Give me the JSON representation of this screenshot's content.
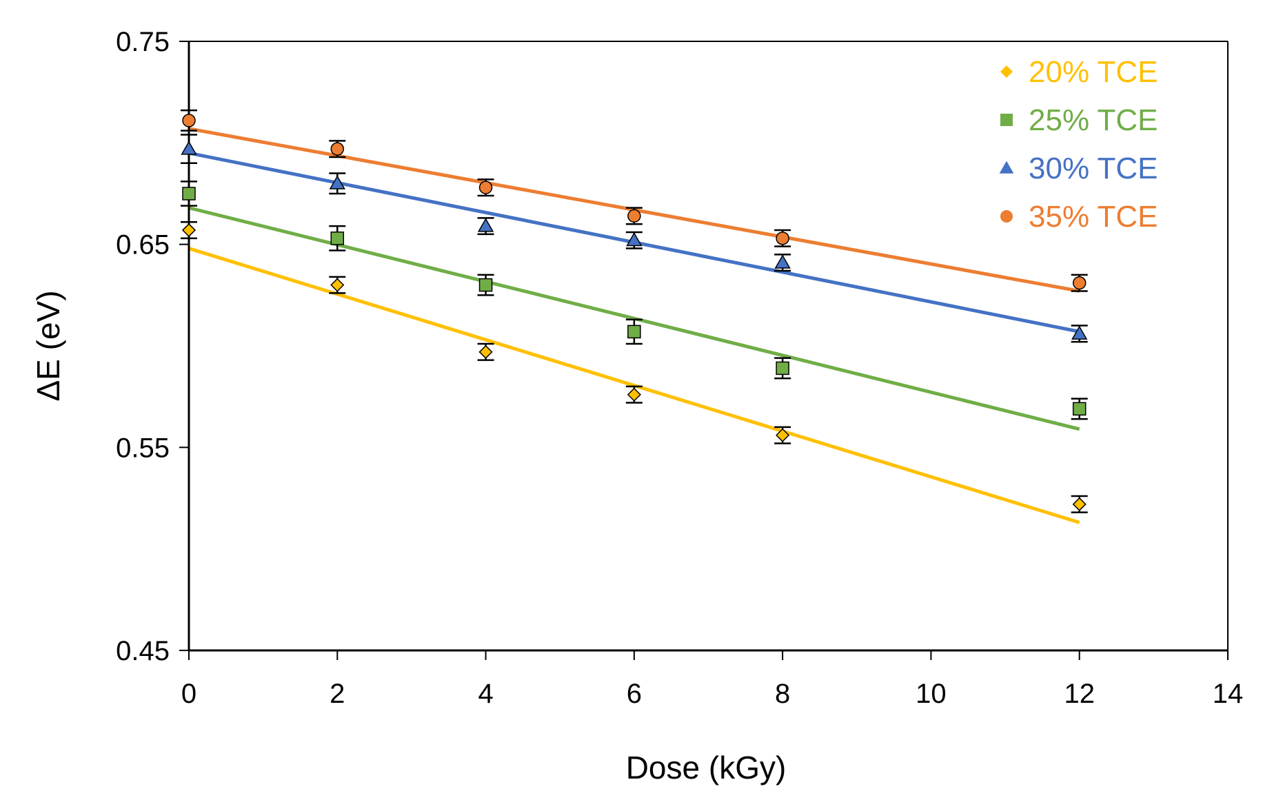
{
  "chart_data": {
    "type": "scatter",
    "title": "",
    "xlabel": "Dose (kGy)",
    "ylabel": "ΔE (eV)",
    "xlim": [
      0,
      14
    ],
    "ylim": [
      0.45,
      0.75
    ],
    "x_ticks": [
      0,
      2,
      4,
      6,
      8,
      10,
      12,
      14
    ],
    "x_tick_labels": [
      "0",
      "2",
      "4",
      "6",
      "8",
      "10",
      "12",
      "14"
    ],
    "y_ticks": [
      0.45,
      0.55,
      0.65,
      0.75
    ],
    "y_tick_labels": [
      "0.45",
      "0.55",
      "0.65",
      "0.75"
    ],
    "legend_position": "top-right",
    "x": [
      0,
      2,
      4,
      6,
      8,
      12
    ],
    "series": [
      {
        "name": "20% TCE",
        "marker": "diamond",
        "color": "#FFC000",
        "values": [
          0.657,
          0.63,
          0.597,
          0.576,
          0.556,
          0.522
        ],
        "error": [
          0.004,
          0.004,
          0.004,
          0.004,
          0.004,
          0.004
        ],
        "trend": [
          0.648,
          0.513
        ]
      },
      {
        "name": "25% TCE",
        "marker": "square",
        "color": "#70AD47",
        "values": [
          0.675,
          0.653,
          0.63,
          0.607,
          0.589,
          0.569
        ],
        "error": [
          0.006,
          0.006,
          0.005,
          0.006,
          0.005,
          0.005
        ],
        "trend": [
          0.668,
          0.559
        ]
      },
      {
        "name": "30% TCE",
        "marker": "triangle",
        "color": "#4472C4",
        "values": [
          0.697,
          0.68,
          0.659,
          0.652,
          0.641,
          0.606
        ],
        "error": [
          0.007,
          0.005,
          0.004,
          0.004,
          0.004,
          0.004
        ],
        "trend": [
          0.695,
          0.607
        ]
      },
      {
        "name": "35% TCE",
        "marker": "circle",
        "color": "#ED7D31",
        "values": [
          0.711,
          0.697,
          0.678,
          0.664,
          0.653,
          0.631
        ],
        "error": [
          0.005,
          0.004,
          0.004,
          0.004,
          0.004,
          0.004
        ],
        "trend": [
          0.707,
          0.627
        ]
      }
    ]
  }
}
